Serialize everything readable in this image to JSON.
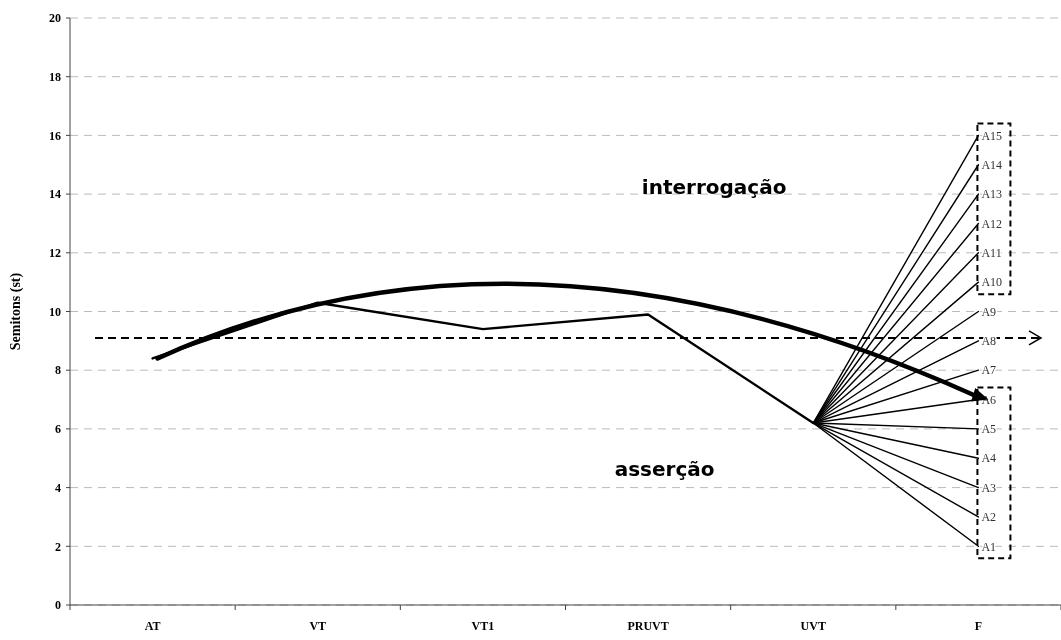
{
  "chart_data": {
    "type": "line",
    "ylabel": "Semitons (st)",
    "categories": [
      "AT",
      "VT",
      "VT1",
      "PRUVT",
      "UVT",
      "F"
    ],
    "ylim": [
      0,
      20
    ],
    "yticks": [
      0,
      2,
      4,
      6,
      8,
      10,
      12,
      14,
      16,
      18,
      20
    ],
    "grid": "y",
    "marker": "none",
    "series": [
      {
        "color": "#000000",
        "values": [
          8.4,
          10.3,
          9.4,
          9.9,
          6.2,
          null
        ]
      },
      {
        "name": "A1",
        "color": "#000000",
        "values": [
          null,
          null,
          null,
          null,
          6.2,
          2
        ]
      },
      {
        "name": "A2",
        "color": "#000000",
        "values": [
          null,
          null,
          null,
          null,
          6.2,
          3
        ]
      },
      {
        "name": "A3",
        "color": "#000000",
        "values": [
          null,
          null,
          null,
          null,
          6.2,
          4
        ]
      },
      {
        "name": "A4",
        "color": "#000000",
        "values": [
          null,
          null,
          null,
          null,
          6.2,
          5
        ]
      },
      {
        "name": "A5",
        "color": "#000000",
        "values": [
          null,
          null,
          null,
          null,
          6.2,
          6
        ]
      },
      {
        "name": "A6",
        "color": "#000000",
        "values": [
          null,
          null,
          null,
          null,
          6.2,
          7
        ]
      },
      {
        "name": "A7",
        "color": "#000000",
        "values": [
          null,
          null,
          null,
          null,
          6.2,
          8
        ]
      },
      {
        "name": "A8",
        "color": "#000000",
        "values": [
          null,
          null,
          null,
          null,
          6.2,
          9
        ]
      },
      {
        "name": "A9",
        "color": "#000000",
        "values": [
          null,
          null,
          null,
          null,
          6.2,
          10
        ]
      },
      {
        "name": "A10",
        "color": "#000000",
        "values": [
          null,
          null,
          null,
          null,
          6.2,
          11
        ]
      },
      {
        "name": "A11",
        "color": "#000000",
        "values": [
          null,
          null,
          null,
          null,
          6.2,
          12
        ]
      },
      {
        "name": "A12",
        "color": "#000000",
        "values": [
          null,
          null,
          null,
          null,
          6.2,
          13
        ]
      },
      {
        "name": "A13",
        "color": "#000000",
        "values": [
          null,
          null,
          null,
          null,
          6.2,
          14
        ]
      },
      {
        "name": "A14",
        "color": "#000000",
        "values": [
          null,
          null,
          null,
          null,
          6.2,
          15
        ]
      },
      {
        "name": "A15",
        "color": "#000000",
        "values": [
          null,
          null,
          null,
          null,
          6.2,
          16
        ]
      }
    ],
    "ref_lines": [
      {
        "axis": "y",
        "value": 9.1,
        "color": "#000000",
        "line_style": "dashed"
      }
    ],
    "annotations": [
      "interrogação",
      "asserção"
    ]
  }
}
